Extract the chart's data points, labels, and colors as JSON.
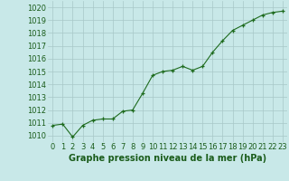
{
  "x": [
    0,
    1,
    2,
    3,
    4,
    5,
    6,
    7,
    8,
    9,
    10,
    11,
    12,
    13,
    14,
    15,
    16,
    17,
    18,
    19,
    20,
    21,
    22,
    23
  ],
  "y": [
    1010.8,
    1010.9,
    1009.9,
    1010.8,
    1011.2,
    1011.3,
    1011.3,
    1011.9,
    1012.0,
    1013.3,
    1014.7,
    1015.0,
    1015.1,
    1015.4,
    1015.1,
    1015.4,
    1016.5,
    1017.4,
    1018.2,
    1018.6,
    1019.0,
    1019.4,
    1019.6,
    1019.7
  ],
  "line_color": "#1e6b1e",
  "marker_color": "#1e6b1e",
  "bg_color": "#c8e8e8",
  "grid_color": "#a8c8c8",
  "xlabel": "Graphe pression niveau de la mer (hPa)",
  "xlabel_color": "#1a5c1a",
  "tick_color": "#1a5c1a",
  "ylim": [
    1009.5,
    1020.5
  ],
  "yticks": [
    1010,
    1011,
    1012,
    1013,
    1014,
    1015,
    1016,
    1017,
    1018,
    1019,
    1020
  ],
  "xticks": [
    0,
    1,
    2,
    3,
    4,
    5,
    6,
    7,
    8,
    9,
    10,
    11,
    12,
    13,
    14,
    15,
    16,
    17,
    18,
    19,
    20,
    21,
    22,
    23
  ],
  "xlabel_fontsize": 7.0,
  "tick_fontsize": 6.0
}
